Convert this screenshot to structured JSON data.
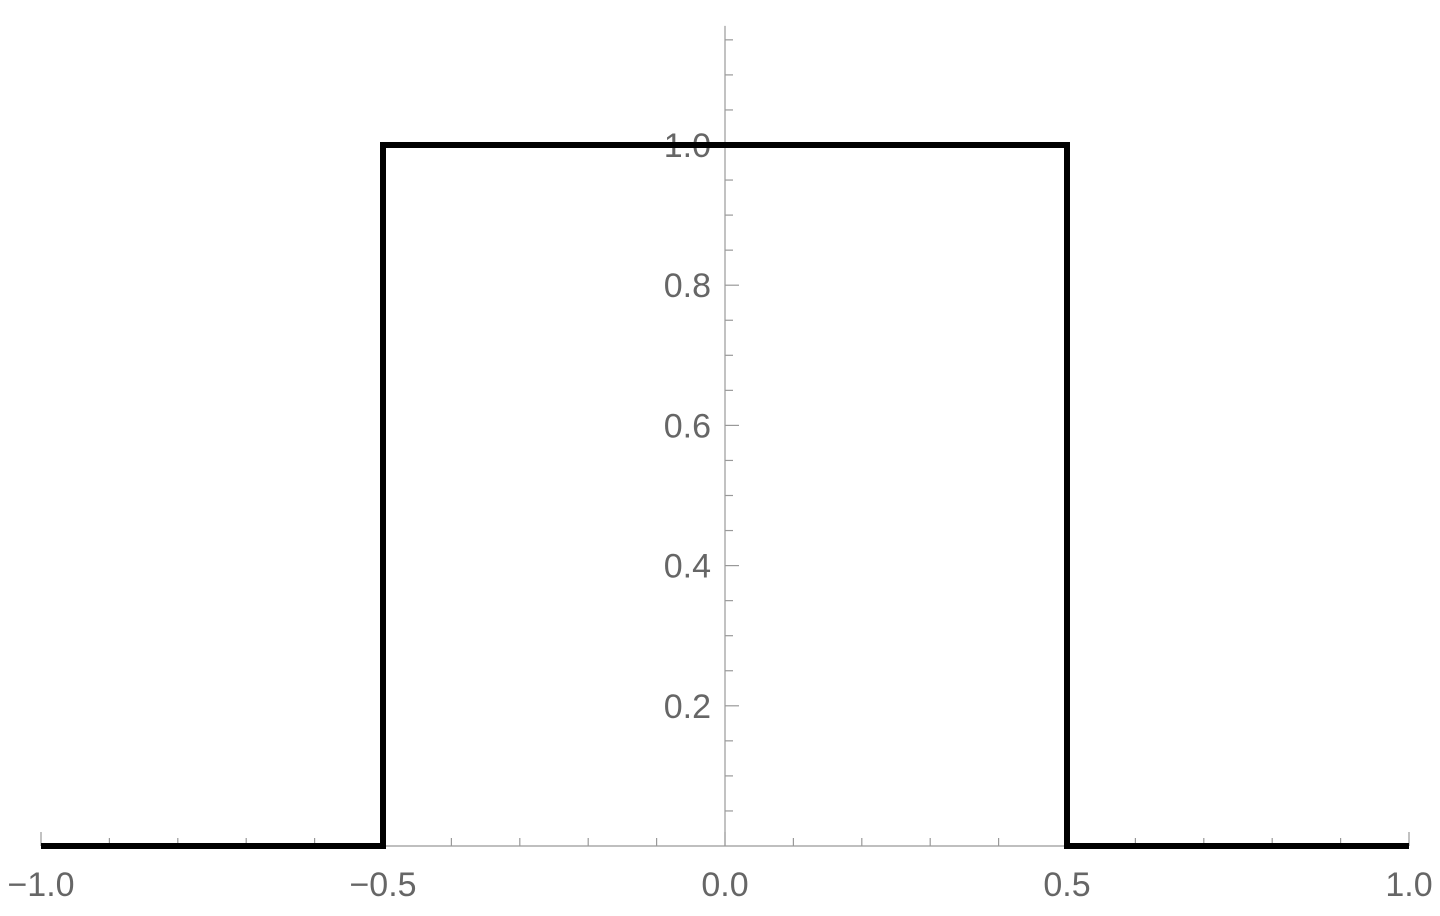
{
  "chart_data": {
    "type": "line",
    "title": "",
    "xlabel": "",
    "ylabel": "",
    "xlim": [
      -1.0,
      1.0
    ],
    "ylim": [
      0.0,
      1.17
    ],
    "x_ticks": [
      "-1.0",
      "-0.5",
      "0.0",
      "0.5",
      "1.0"
    ],
    "y_ticks": [
      "0.2",
      "0.4",
      "0.6",
      "0.8",
      "1.0"
    ],
    "x_tick_values": [
      -1.0,
      -0.5,
      0.0,
      0.5,
      1.0
    ],
    "y_tick_values": [
      0.2,
      0.4,
      0.6,
      0.8,
      1.0
    ],
    "x_minor_step": 0.1,
    "y_minor_step": 0.05,
    "grid": false,
    "series": [
      {
        "color": "#000000",
        "x": [
          -1.0,
          -0.5,
          -0.5,
          0.5,
          0.5,
          1.0
        ],
        "y": [
          0.0,
          0.0,
          1.0,
          1.0,
          0.0,
          0.0
        ]
      }
    ]
  }
}
